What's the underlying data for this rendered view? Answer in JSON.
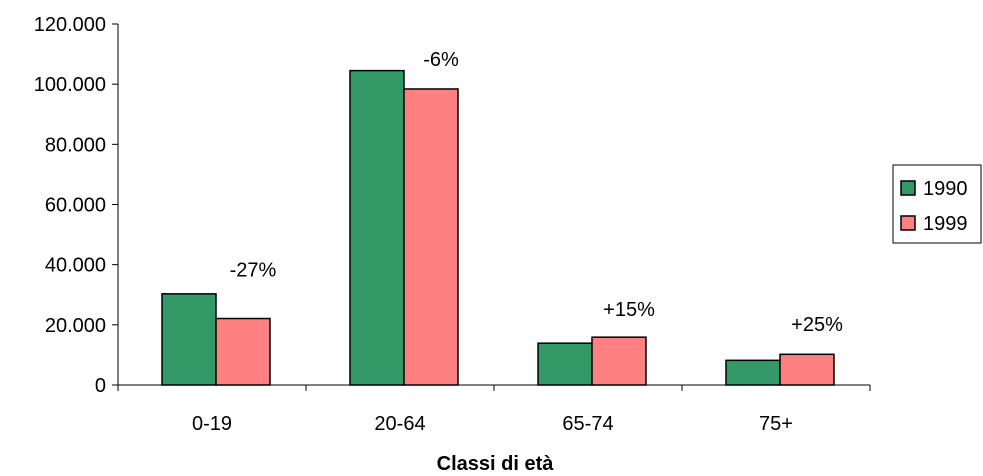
{
  "chart_data": {
    "type": "bar",
    "title": "",
    "xlabel": "Classi di età",
    "ylabel": "",
    "categories": [
      "0-19",
      "20-64",
      "65-74",
      "75+"
    ],
    "series": [
      {
        "name": "1990",
        "values": [
          30300,
          104500,
          13900,
          8200
        ],
        "color": "#339966"
      },
      {
        "name": "1999",
        "values": [
          22100,
          98400,
          15900,
          10200
        ],
        "color": "#ff8080"
      }
    ],
    "ylim": [
      0,
      120000
    ],
    "yticks": [
      0,
      20000,
      40000,
      60000,
      80000,
      100000,
      120000
    ],
    "ytick_labels": [
      "0",
      "20.000",
      "40.000",
      "60.000",
      "80.000",
      "100.000",
      "120.000"
    ],
    "annotations": [
      "-27%",
      "-6%",
      "+15%",
      "+25%"
    ],
    "annotation_y": [
      36000,
      106000,
      23000,
      18000
    ],
    "grid": false,
    "legend": "right"
  }
}
